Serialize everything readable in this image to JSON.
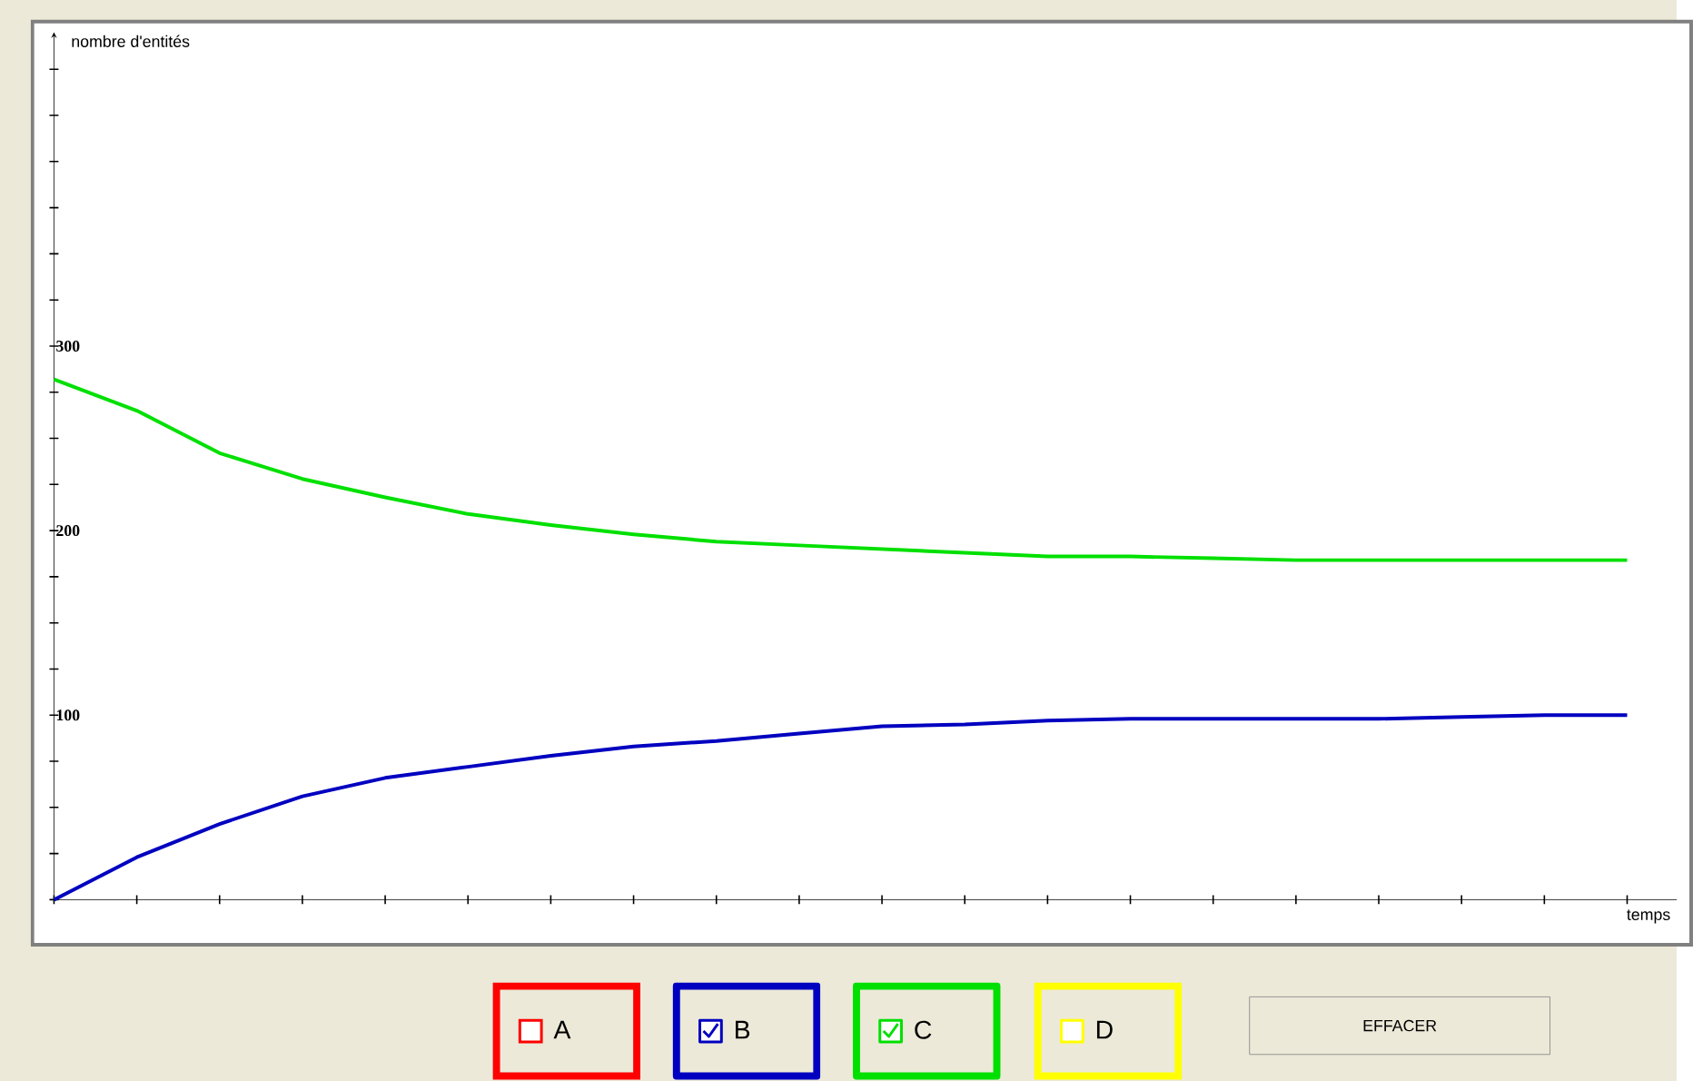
{
  "chart_data": {
    "type": "line",
    "xlabel": "temps",
    "ylabel": "nombre d'entités",
    "categories": [
      null,
      null,
      null,
      null,
      null,
      null,
      null,
      null,
      null,
      null,
      null,
      null,
      null,
      null,
      null,
      null,
      null,
      null,
      null,
      null
    ],
    "ylim": [
      0,
      470
    ],
    "yticks": [
      {
        "value": 0,
        "label": null
      },
      {
        "value": 25,
        "label": null
      },
      {
        "value": 50,
        "label": null
      },
      {
        "value": 75,
        "label": null
      },
      100,
      {
        "value": 125,
        "label": null
      },
      {
        "value": 150,
        "label": null
      },
      {
        "value": 175,
        "label": null
      },
      200,
      {
        "value": 225,
        "label": null
      },
      {
        "value": 250,
        "label": null
      },
      {
        "value": 275,
        "label": null
      },
      300,
      {
        "value": 325,
        "label": null
      },
      {
        "value": 350,
        "label": null
      },
      {
        "value": 375,
        "label": null
      },
      {
        "value": 400,
        "label": null
      },
      {
        "value": 425,
        "label": null
      },
      {
        "value": 450,
        "label": null
      }
    ],
    "legend": "bottom",
    "series": [
      {
        "name": "A",
        "color": "#ff0000",
        "values": [
          null,
          null,
          null,
          null,
          null,
          null,
          null,
          null,
          null,
          null,
          null,
          null,
          null,
          null,
          null,
          null,
          null,
          null,
          null,
          null
        ]
      },
      {
        "name": "B",
        "color": "#0000c0",
        "values": [
          0,
          23,
          41,
          56,
          66,
          72,
          78,
          83,
          86,
          90,
          94,
          95,
          97,
          98,
          98,
          98,
          98,
          99,
          100,
          100
        ]
      },
      {
        "name": "C",
        "color": "#00e000",
        "values": [
          282,
          265,
          242,
          228,
          218,
          209,
          203,
          198,
          194,
          192,
          190,
          188,
          186,
          186,
          185,
          184,
          184,
          184,
          184,
          184
        ]
      },
      {
        "name": "D",
        "color": "#ffff00",
        "values": [
          null,
          null,
          null,
          null,
          null,
          null,
          null,
          null,
          null,
          null,
          null,
          null,
          null,
          null,
          null,
          null,
          null,
          null,
          null,
          null
        ]
      }
    ],
    "annotations": [
      "EFFACER"
    ]
  }
}
